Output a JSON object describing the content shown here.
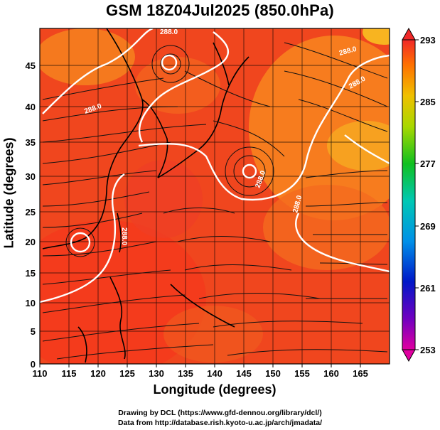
{
  "title": "GSM 18Z04Jul2025 (850.0hPa)",
  "axes": {
    "xlabel": "Longitude (degrees)",
    "ylabel": "Latitude  (degrees)",
    "xlim": [
      110,
      170
    ],
    "ylim": [
      0,
      50
    ],
    "xticks": [
      "110",
      "115",
      "120",
      "125",
      "130",
      "135",
      "140",
      "145",
      "150",
      "155",
      "160",
      "165"
    ],
    "yticks": [
      "0",
      "5",
      "10",
      "15",
      "20",
      "25",
      "30",
      "35",
      "40",
      "45"
    ]
  },
  "colorbar": {
    "labels": [
      "293",
      "285",
      "277",
      "269",
      "261",
      "253"
    ],
    "min": 253,
    "max": 293
  },
  "contour_labels": [
    "288.0",
    "288.0",
    "288.0",
    "288.0",
    "288.0",
    "288.0",
    "288.0"
  ],
  "credits": {
    "line1": "Drawing by DCL (https://www.gfd-dennou.org/library/dcl/)",
    "line2": "Data from http://database.rish.kyoto-u.ac.jp/arch/jmadata/"
  },
  "chart_data": {
    "type": "heatmap",
    "title": "GSM 18Z04Jul2025 (850.0hPa)",
    "xlabel": "Longitude (degrees)",
    "ylabel": "Latitude  (degrees)",
    "xlim": [
      110,
      170
    ],
    "ylim": [
      0,
      50
    ],
    "colorbar_range": [
      253,
      293
    ],
    "contour_level": 288.0,
    "grid": true,
    "overlays": [
      "coastlines",
      "wind streamlines",
      "288 K contour (white)"
    ]
  }
}
